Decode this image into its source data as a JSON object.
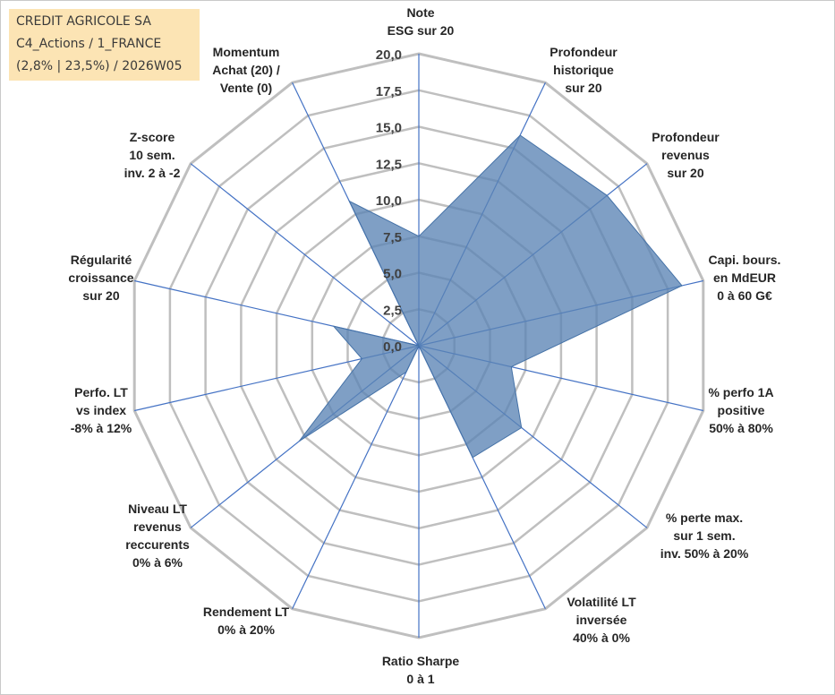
{
  "header": {
    "line1": "CREDIT AGRICOLE SA",
    "line2": "C4_Actions / 1_FRANCE",
    "line3": "(2,8% | 23,5%) / 2026W05"
  },
  "chart_data": {
    "type": "radar",
    "range": [
      0,
      20
    ],
    "ticks": [
      "0,0",
      "2,5",
      "5,0",
      "7,5",
      "10,0",
      "12,5",
      "15,0",
      "17,5",
      "20,0"
    ],
    "axes": [
      {
        "label": [
          "Note",
          "ESG sur 20"
        ],
        "value": 7.5
      },
      {
        "label": [
          "Profondeur",
          "historique",
          "sur 20"
        ],
        "value": 16.0
      },
      {
        "label": [
          "Profondeur",
          "revenus",
          "sur 20"
        ],
        "value": 16.5
      },
      {
        "label": [
          "Capi. bours.",
          "en MdEUR",
          "0 à 60 G€"
        ],
        "value": 18.5
      },
      {
        "label": [
          "% perfo 1A",
          "positive",
          "50% à 80%"
        ],
        "value": 6.5
      },
      {
        "label": [
          "% perte max.",
          "sur 1 sem.",
          "inv. 50% à 20%"
        ],
        "value": 9.0
      },
      {
        "label": [
          "Volatilité LT",
          "inversée",
          "40% à 0%"
        ],
        "value": 8.5
      },
      {
        "label": [
          "Ratio Sharpe",
          "0 à 1"
        ],
        "value": 0.0
      },
      {
        "label": [
          "Rendement LT",
          "0% à 20%"
        ],
        "value": 2.0
      },
      {
        "label": [
          "Niveau LT",
          "revenus",
          "reccurents",
          "0% à 6%"
        ],
        "value": 10.5
      },
      {
        "label": [
          "Perfo. LT",
          "vs index",
          "-8% à 12%"
        ],
        "value": 4.0
      },
      {
        "label": [
          "Régularité",
          "croissance",
          "sur 20"
        ],
        "value": 6.0
      },
      {
        "label": [
          "Z-score",
          "10 sem.",
          "inv. 2 à -2"
        ],
        "value": 0.0
      },
      {
        "label": [
          "Momentum",
          "Achat (20) /",
          "Vente (0)"
        ],
        "value": 11.0
      }
    ],
    "colors": {
      "fill": "#5b84b5",
      "stroke": "#4572a7",
      "spoke": "#4472c4",
      "grid": "#bfbfbf"
    }
  }
}
